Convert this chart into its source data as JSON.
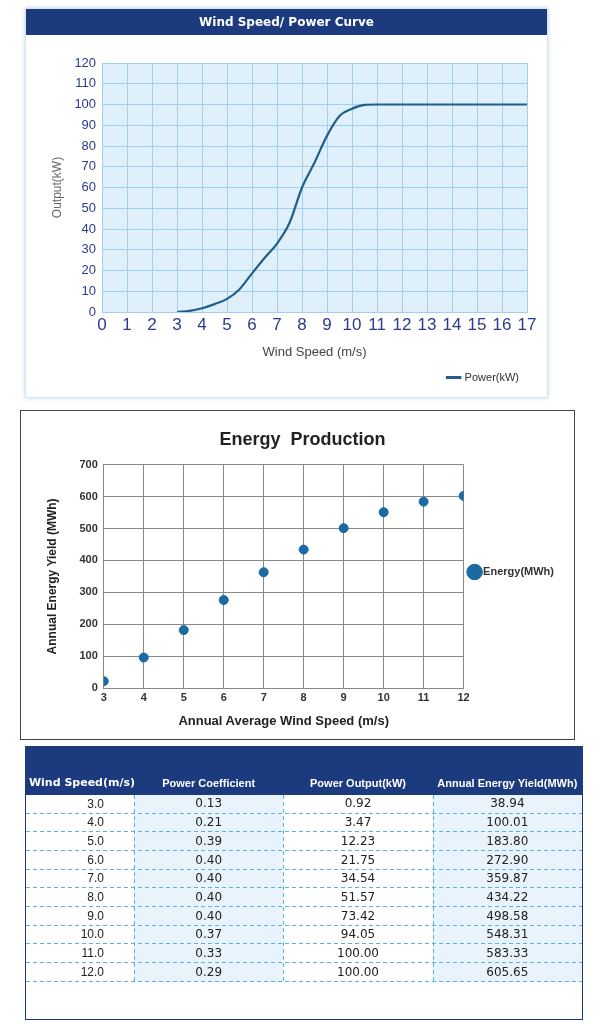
{
  "chart_data": [
    {
      "type": "line",
      "title": "Wind Speed/ Power Curve",
      "xlabel": "Wind Speed (m/s)",
      "ylabel": "Output(kW)",
      "series": [
        {
          "name": "Power(kW)",
          "color": "#1f5f8b",
          "x": [
            3,
            3.5,
            4,
            4.5,
            5,
            5.5,
            6,
            6.5,
            7,
            7.5,
            8,
            8.5,
            9,
            9.5,
            10,
            10.5,
            11,
            12,
            13,
            14,
            15,
            16,
            17
          ],
          "values": [
            0,
            0.5,
            1.8,
            3.8,
            6.3,
            11,
            18.6,
            26,
            33,
            43,
            60,
            72,
            85,
            94.5,
            98,
            99.8,
            100,
            100,
            100,
            100,
            100,
            100,
            100
          ]
        }
      ],
      "xlim": [
        0,
        17
      ],
      "xticks": [
        0,
        1,
        2,
        3,
        4,
        5,
        6,
        7,
        8,
        9,
        10,
        11,
        12,
        13,
        14,
        15,
        16,
        17
      ],
      "ylim": [
        0,
        120
      ],
      "yticks": [
        0,
        10,
        20,
        30,
        40,
        50,
        60,
        70,
        80,
        90,
        100,
        110,
        120
      ],
      "grid": true,
      "legend": "bottom right",
      "marker": "none",
      "line_style": "solid"
    },
    {
      "type": "scatter",
      "title": "Energy  Production",
      "xlabel": "Annual Average Wind Speed (m/s)",
      "ylabel": "Annual Energy Yield (MWh)",
      "series": [
        {
          "name": "Energy(MWh)",
          "color": "#1a6aa3",
          "x": [
            3,
            4,
            5,
            6,
            7,
            8,
            9,
            10,
            11,
            12
          ],
          "values": [
            22,
            96,
            182,
            276,
            363,
            434,
            501,
            551,
            584,
            602
          ]
        }
      ],
      "xlim": [
        3,
        12
      ],
      "xticks": [
        3,
        4,
        5,
        6,
        7,
        8,
        9,
        10,
        11,
        12
      ],
      "ylim": [
        0,
        700
      ],
      "yticks": [
        0,
        100,
        200,
        300,
        400,
        500,
        600,
        700
      ],
      "grid": true,
      "legend": "right",
      "marker": "circle"
    },
    {
      "type": "heatmap",
      "data_labels": true,
      "ylabel": "Wind Speed(m/s)",
      "categories": [
        "Power Coefficient",
        "Power Output(kW)",
        "Annual Energy Yield(MWh)"
      ],
      "y_categories": [
        "3.0",
        "4.0",
        "5.0",
        "6.0",
        "7.0",
        "8.0",
        "9.0",
        "10.0",
        "11.0",
        "12.0"
      ],
      "cells": [
        [
          0.13,
          0.92,
          38.94
        ],
        [
          0.21,
          3.47,
          100.01
        ],
        [
          0.39,
          12.23,
          183.8
        ],
        [
          0.4,
          21.75,
          272.9
        ],
        [
          0.4,
          34.54,
          359.87
        ],
        [
          0.4,
          51.57,
          434.22
        ],
        [
          0.4,
          73.42,
          498.58
        ],
        [
          0.37,
          94.05,
          548.31
        ],
        [
          0.33,
          100.0,
          583.33
        ],
        [
          0.29,
          100.0,
          605.65
        ]
      ],
      "cell_labels": [
        [
          "0.13",
          "0.92",
          "38.94"
        ],
        [
          "0.21",
          "3.47",
          "100.01"
        ],
        [
          "0.39",
          "12.23",
          "183.80"
        ],
        [
          "0.40",
          "21.75",
          "272.90"
        ],
        [
          "0.40",
          "34.54",
          "359.87"
        ],
        [
          "0.40",
          "51.57",
          "434.22"
        ],
        [
          "0.40",
          "73.42",
          "498.58"
        ],
        [
          "0.37",
          "94.05",
          "548.31"
        ],
        [
          "0.33",
          "100.00",
          "583.33"
        ],
        [
          "0.29",
          "100.00",
          "605.65"
        ]
      ]
    }
  ]
}
